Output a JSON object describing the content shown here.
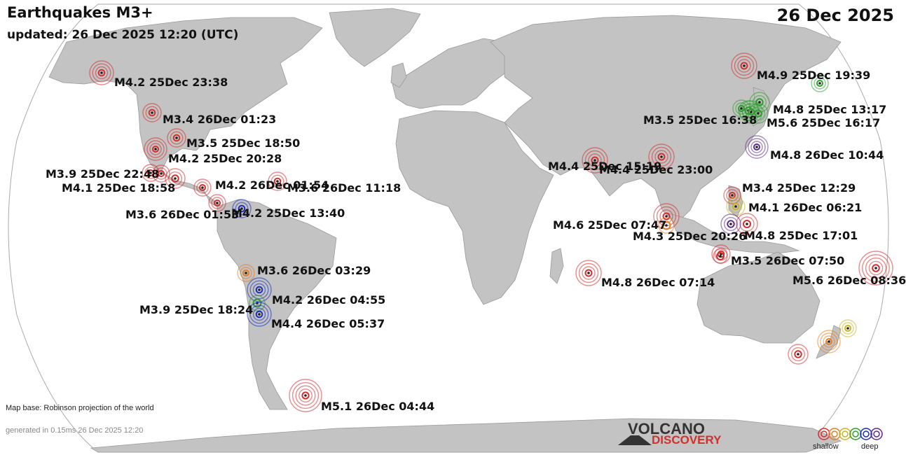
{
  "header": {
    "title": "Earthquakes M3+",
    "updated": "updated: 26 Dec 2025 12:20 (UTC)",
    "date": "26 Dec 2025"
  },
  "footer": {
    "map_base": "Map base: Robinson projection of the world",
    "generated": "generated in 0.15ms 26 Dec 2025 12:20",
    "logo_top": "VOLCANO",
    "logo_bottom": "DISCOVERY"
  },
  "legend": {
    "shallow_label": "shallow",
    "deep_label": "deep",
    "depth_colors": [
      "#d32f2f",
      "#e67e22",
      "#c9b224",
      "#2e9e2e",
      "#1a2fbf",
      "#5c2a8a"
    ]
  },
  "colors": {
    "ocean": "#ffffff",
    "land": "#c3c3c3",
    "outline": "#9a9a9a"
  },
  "quakes": [
    {
      "label": "M4.2 25Dec 23:38",
      "color": "#d32f2f"
    },
    {
      "label": "M3.4 26Dec 01:23",
      "color": "#d32f2f"
    },
    {
      "label": "M3.5 25Dec 18:50",
      "color": "#d32f2f"
    },
    {
      "label": "M4.2 25Dec 20:28",
      "color": "#d32f2f"
    },
    {
      "label": "M3.9 25Dec 22:48",
      "color": "#d32f2f"
    },
    {
      "label": "M4.1 25Dec 18:58",
      "color": "#d32f2f"
    },
    {
      "label": "M4.2 26Dec 01:54",
      "color": "#d32f2f"
    },
    {
      "label": "M3.6 26Dec 11:18",
      "color": "#d32f2f"
    },
    {
      "label": "M3.6 26Dec 01:53",
      "color": "#d32f2f"
    },
    {
      "label": "M4.2 25Dec 13:40",
      "color": "#1a2fbf"
    },
    {
      "label": "M3.6 26Dec 03:29",
      "color": "#e67e22"
    },
    {
      "label": "M4.2 26Dec 04:55",
      "color": "#1a2fbf"
    },
    {
      "label": "M3.9 25Dec 18:24",
      "color": "#2e9e2e"
    },
    {
      "label": "M4.4 26Dec 05:37",
      "color": "#1a2fbf"
    },
    {
      "label": "M5.1 26Dec 04:44",
      "color": "#d32f2f"
    },
    {
      "label": "M4.4 25Dec 15:19",
      "color": "#d32f2f"
    },
    {
      "label": "M4.4 25Dec 23:00",
      "color": "#d32f2f"
    },
    {
      "label": "M4.6 25Dec 07:47",
      "color": "#d32f2f"
    },
    {
      "label": "M4.3 25Dec 20:26",
      "color": "#e67e22"
    },
    {
      "label": "M4.8 26Dec 07:14",
      "color": "#d32f2f"
    },
    {
      "label": "M4.9 25Dec 19:39",
      "color": "#2e9e2e"
    },
    {
      "label": "M4.8 25Dec 13:17",
      "color": "#2e9e2e"
    },
    {
      "label": "M3.5 25Dec 16:38",
      "color": "#2e9e2e"
    },
    {
      "label": "M5.6 25Dec 16:17",
      "color": "#2e9e2e"
    },
    {
      "label": "M4.8 26Dec 10:44",
      "color": "#5c2a8a"
    },
    {
      "label": "M3.4 25Dec 12:29",
      "color": "#d32f2f"
    },
    {
      "label": "M4.1 26Dec 06:21",
      "color": "#c9b224"
    },
    {
      "label": "M4.8 25Dec 17:01",
      "color": "#d32f2f"
    },
    {
      "label": "M3.5 26Dec 07:50",
      "color": "#d32f2f"
    },
    {
      "label": "M5.6 26Dec 08:36",
      "color": "#d32f2f"
    }
  ],
  "unlabeled_quakes": [
    {
      "color": "#d32f2f"
    },
    {
      "color": "#2e9e2e"
    },
    {
      "color": "#5c2a8a"
    },
    {
      "color": "#d32f2f"
    },
    {
      "color": "#e67e22"
    },
    {
      "color": "#c9b224"
    },
    {
      "color": "#d32f2f"
    },
    {
      "color": "#2e9e2e"
    },
    {
      "color": "#d32f2f"
    }
  ]
}
